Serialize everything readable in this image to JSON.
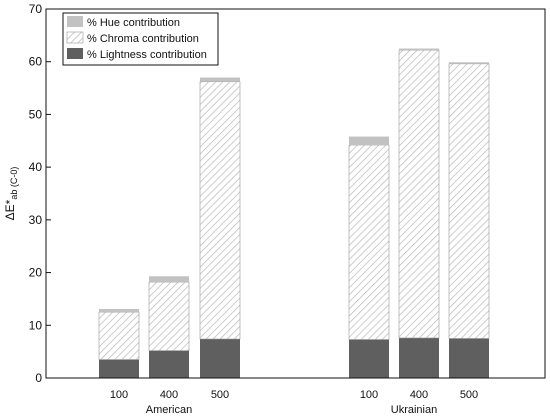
{
  "chart_data": {
    "type": "bar",
    "stacked": true,
    "ylabel": "ΔE*ab (C-0)",
    "ylabel_main": "ΔE*",
    "ylabel_sub": "ab (C-0)",
    "ylim": [
      0,
      70
    ],
    "yticks": [
      0,
      10,
      20,
      30,
      40,
      50,
      60,
      70
    ],
    "groups": [
      {
        "name": "American",
        "categories": [
          "100",
          "400",
          "500"
        ]
      },
      {
        "name": "Ukrainian",
        "categories": [
          "100",
          "400",
          "500"
        ]
      }
    ],
    "categories": [
      "100",
      "400",
      "500",
      "100",
      "400",
      "500"
    ],
    "series": [
      {
        "name": "% Lightness contribution",
        "color": "#5f5f5f",
        "pattern": "solid",
        "values": [
          3.5,
          5.2,
          7.4,
          7.3,
          7.6,
          7.5
        ]
      },
      {
        "name": "% Chroma contribution",
        "color": "#d9d9d9",
        "pattern": "diagonal-hatch",
        "values": [
          9.0,
          13.0,
          48.8,
          36.9,
          54.6,
          52.1
        ]
      },
      {
        "name": "% Hue contribution",
        "color": "#c2c2c2",
        "pattern": "solid",
        "values": [
          0.6,
          1.1,
          0.8,
          1.6,
          0.3,
          0.3
        ]
      }
    ],
    "legend": {
      "position": "top-left",
      "order": [
        "% Hue contribution",
        "% Chroma contribution",
        "% Lightness contribution"
      ]
    },
    "grid": false
  }
}
